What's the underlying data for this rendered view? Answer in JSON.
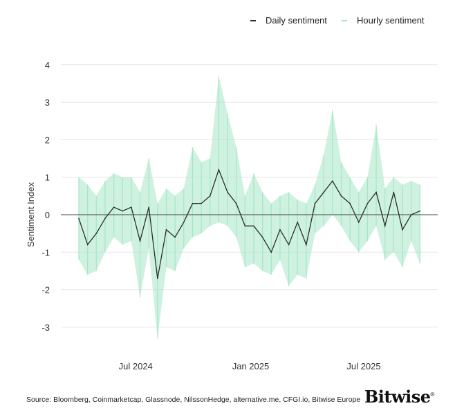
{
  "legend": {
    "daily": "Daily sentiment",
    "hourly": "Hourly sentiment"
  },
  "source": "Source: Bloomberg, Coinmarketcap, Glassnode, NilssonHedge, alternative.me, CFGI.io, Bitwise Europe",
  "logo": "Bitwise",
  "colors": {
    "daily": "#2b2b2b",
    "hourly": "#a6e6c6",
    "grid": "#e6e6e6",
    "zero": "#444444"
  },
  "chart_data": {
    "type": "line",
    "ylabel": "Sentiment Index",
    "xlabel": "",
    "ylim": [
      -3.5,
      4
    ],
    "yticks": [
      4,
      3,
      2,
      1,
      0,
      -1,
      -2,
      -3
    ],
    "xticks": [
      {
        "date": "2024-07-01",
        "label": "Jul 2024"
      },
      {
        "date": "2025-01-01",
        "label": "Jan 2025"
      },
      {
        "date": "2025-07-01",
        "label": "Jul 2025"
      }
    ],
    "xlim": [
      "2024-03-04",
      "2025-11-01"
    ],
    "grid": true,
    "legend_position": "top-right",
    "dates": [
      "2024-04-01",
      "2024-04-15",
      "2024-04-29",
      "2024-05-13",
      "2024-05-27",
      "2024-06-10",
      "2024-06-24",
      "2024-07-08",
      "2024-07-22",
      "2024-08-05",
      "2024-08-19",
      "2024-09-02",
      "2024-09-16",
      "2024-09-30",
      "2024-10-14",
      "2024-10-28",
      "2024-11-11",
      "2024-11-25",
      "2024-12-09",
      "2024-12-23",
      "2025-01-06",
      "2025-01-20",
      "2025-02-03",
      "2025-02-17",
      "2025-03-03",
      "2025-03-17",
      "2025-03-31",
      "2025-04-14",
      "2025-04-28",
      "2025-05-12",
      "2025-05-26",
      "2025-06-09",
      "2025-06-23",
      "2025-07-07",
      "2025-07-21",
      "2025-08-04",
      "2025-08-18",
      "2025-09-01",
      "2025-09-15",
      "2025-09-29"
    ],
    "series": [
      {
        "name": "Daily sentiment",
        "values": [
          -0.1,
          -0.8,
          -0.5,
          -0.1,
          0.2,
          0.1,
          0.2,
          -0.7,
          0.2,
          -1.7,
          -0.4,
          -0.6,
          -0.2,
          0.3,
          0.3,
          0.5,
          1.2,
          0.6,
          0.3,
          -0.3,
          -0.3,
          -0.6,
          -1.0,
          -0.4,
          -0.8,
          -0.2,
          -0.8,
          0.3,
          0.6,
          0.9,
          0.5,
          0.3,
          -0.2,
          0.3,
          0.6,
          -0.3,
          0.6,
          -0.4,
          0.0,
          0.1
        ]
      },
      {
        "name": "Hourly sentiment",
        "high": [
          1.0,
          0.8,
          0.5,
          0.9,
          1.1,
          1.0,
          1.0,
          0.6,
          1.5,
          0.3,
          0.7,
          0.5,
          0.7,
          1.8,
          1.4,
          1.5,
          3.7,
          2.7,
          1.8,
          0.5,
          1.1,
          0.6,
          0.3,
          0.5,
          0.6,
          0.4,
          0.3,
          0.8,
          1.6,
          2.8,
          1.4,
          1.0,
          0.6,
          1.0,
          2.4,
          0.7,
          1.0,
          0.8,
          0.9,
          0.8
        ],
        "low": [
          -1.2,
          -1.6,
          -1.5,
          -1.0,
          -0.6,
          -0.8,
          -0.7,
          -2.2,
          -0.9,
          -3.3,
          -1.4,
          -1.5,
          -0.9,
          -0.6,
          -0.5,
          -0.3,
          -0.2,
          -0.3,
          -0.6,
          -1.4,
          -1.3,
          -1.5,
          -1.6,
          -1.2,
          -1.9,
          -1.6,
          -1.7,
          -0.5,
          -0.3,
          0.0,
          -0.3,
          -0.7,
          -1.0,
          -0.7,
          -0.3,
          -1.2,
          -1.0,
          -1.4,
          -0.7,
          -1.3
        ]
      }
    ]
  }
}
